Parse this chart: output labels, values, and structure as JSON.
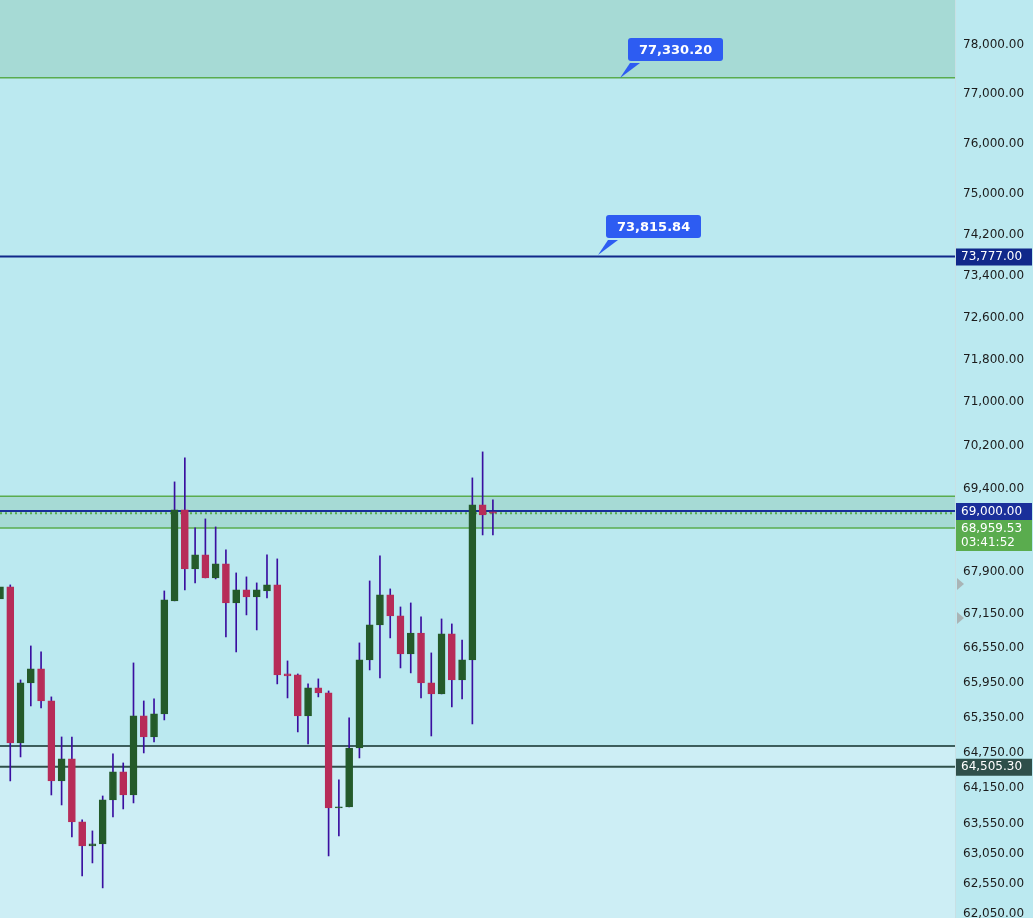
{
  "chart_data": {
    "type": "candlestick",
    "log": "y",
    "grid": false,
    "legend": false,
    "tick_labels": "y",
    "categories": [
      null,
      null,
      null,
      null,
      null,
      null,
      null,
      null,
      null,
      null,
      null,
      null,
      null,
      null,
      null,
      null,
      null,
      null,
      null,
      null,
      null,
      null,
      null,
      null,
      null,
      null,
      null,
      null,
      null,
      null,
      null,
      null,
      null,
      null,
      null,
      null,
      null,
      null,
      null,
      null,
      null,
      null,
      null,
      null,
      null,
      null,
      null,
      null,
      null,
      null,
      null,
      null,
      null,
      null,
      null,
      null,
      null,
      null,
      null,
      null,
      null,
      null,
      null,
      null,
      null,
      null,
      null,
      null,
      null,
      null,
      null,
      null,
      null,
      null,
      null,
      null,
      null,
      null,
      null,
      null,
      null,
      null,
      null,
      null,
      null,
      null,
      null,
      null,
      null,
      null,
      null,
      null,
      null,
      null
    ],
    "ohlc": [
      [
        67420,
        67633,
        67420,
        67633
      ],
      [
        67633,
        67669,
        64267,
        64912
      ],
      [
        64912,
        65998,
        64674,
        65946
      ],
      [
        65946,
        66591,
        65548,
        66189
      ],
      [
        66189,
        66486,
        65514,
        65634
      ],
      [
        65634,
        65704,
        64030,
        64267
      ],
      [
        64267,
        65015,
        63862,
        64640
      ],
      [
        64640,
        65015,
        63327,
        63578
      ],
      [
        63578,
        63611,
        62681,
        63177
      ],
      [
        63177,
        63427,
        62895,
        63210
      ],
      [
        63210,
        64013,
        62483,
        63946
      ],
      [
        63946,
        64725,
        63661,
        64419
      ],
      [
        64419,
        64572,
        63795,
        64030
      ],
      [
        64030,
        66294,
        63896,
        65376
      ],
      [
        65376,
        65634,
        64742,
        65015
      ],
      [
        65015,
        65669,
        64929,
        65410
      ],
      [
        65410,
        67562,
        65307,
        67402
      ],
      [
        67385,
        69529,
        67385,
        69018
      ],
      [
        69018,
        69970,
        67580,
        67955
      ],
      [
        67955,
        68692,
        67705,
        68205
      ],
      [
        68205,
        68855,
        67794,
        67794
      ],
      [
        67794,
        68710,
        67776,
        68044
      ],
      [
        68044,
        68295,
        66749,
        67349
      ],
      [
        67349,
        67883,
        66486,
        67580
      ],
      [
        67580,
        67812,
        67137,
        67456
      ],
      [
        67456,
        67705,
        66872,
        67580
      ],
      [
        67562,
        68205,
        67438,
        67669
      ],
      [
        67669,
        68134,
        65929,
        66085
      ],
      [
        66102,
        66329,
        65686,
        66068
      ],
      [
        66085,
        66102,
        65101,
        65376
      ],
      [
        65376,
        65929,
        64895,
        65859
      ],
      [
        65859,
        66016,
        65704,
        65773
      ],
      [
        65773,
        65807,
        63011,
        63812
      ],
      [
        63812,
        64284,
        63344,
        63829
      ],
      [
        63829,
        65341,
        63829,
        64827
      ],
      [
        64827,
        66644,
        64657,
        66346
      ],
      [
        66346,
        67740,
        66172,
        66961
      ],
      [
        66961,
        68187,
        66033,
        67491
      ],
      [
        67491,
        67598,
        66732,
        67119
      ],
      [
        67119,
        67278,
        66207,
        66451
      ],
      [
        66451,
        67349,
        66120,
        66819
      ],
      [
        66819,
        67102,
        65686,
        65946
      ],
      [
        65946,
        66469,
        65032,
        65755
      ],
      [
        65755,
        67066,
        65755,
        66802
      ],
      [
        66802,
        66978,
        65531,
        65998
      ],
      [
        65998,
        66696,
        65669,
        66346
      ],
      [
        66346,
        69602,
        65238,
        69109
      ],
      [
        69109,
        70080,
        68565,
        68927
      ],
      [
        68982,
        69200,
        68565,
        68959.53
      ],
      null,
      null,
      null,
      null,
      null,
      null,
      null,
      null,
      null,
      null,
      null,
      null,
      null,
      null,
      null,
      null,
      null,
      null,
      null,
      null,
      null,
      null,
      null,
      null,
      null,
      null,
      null,
      null,
      null,
      null,
      null,
      null,
      null,
      null,
      null,
      null,
      null,
      null,
      null,
      null,
      null,
      null,
      null,
      null,
      null
    ],
    "colors": [
      "#245a2a",
      "#b72c58",
      "#245a2a",
      "#245a2a",
      "#b72c58",
      "#b72c58",
      "#245a2a",
      "#b72c58",
      "#b72c58",
      "#245a2a",
      "#245a2a",
      "#245a2a",
      "#b72c58",
      "#245a2a",
      "#b72c58",
      "#245a2a",
      "#245a2a",
      "#245a2a",
      "#b72c58",
      "#245a2a",
      "#b72c58",
      "#245a2a",
      "#b72c58",
      "#245a2a",
      "#b72c58",
      "#245a2a",
      "#245a2a",
      "#b72c58",
      "#b72c58",
      "#b72c58",
      "#245a2a",
      "#b72c58",
      "#b72c58",
      "#245a2a",
      "#245a2a",
      "#245a2a",
      "#245a2a",
      "#245a2a",
      "#b72c58",
      "#b72c58",
      "#245a2a",
      "#b72c58",
      "#b72c58",
      "#245a2a",
      "#b72c58",
      "#245a2a",
      "#245a2a",
      "#b72c58",
      "#b72c58",
      null,
      null,
      null,
      null,
      null,
      null,
      null,
      null,
      null,
      null,
      null,
      null,
      null,
      null,
      null,
      null,
      null,
      null,
      null,
      null,
      null,
      null,
      null,
      null,
      null,
      null,
      null,
      null,
      null,
      null,
      null,
      null,
      null,
      null,
      null,
      null,
      null,
      null,
      null,
      null,
      null,
      null,
      null,
      null,
      null
    ],
    "ylim": [
      61990,
      78930
    ],
    "yticks": [
      {
        "value": 62050,
        "label": "62,050.00"
      },
      {
        "value": 62550,
        "label": "62,550.00"
      },
      {
        "value": 63050,
        "label": "63,050.00"
      },
      {
        "value": 63550,
        "label": "63,550.00"
      },
      {
        "value": 64150,
        "label": "64,150.00"
      },
      {
        "value": 64750,
        "label": "64,750.00"
      },
      {
        "value": 65350,
        "label": "65,350.00"
      },
      {
        "value": 65950,
        "label": "65,950.00"
      },
      {
        "value": 66550,
        "label": "66,550.00"
      },
      {
        "value": 67150,
        "label": "67,150.00"
      },
      {
        "value": 67900,
        "label": "67,900.00"
      },
      {
        "value": 69400,
        "label": "69,400.00"
      },
      {
        "value": 70200,
        "label": "70,200.00"
      },
      {
        "value": 71000,
        "label": "71,000.00"
      },
      {
        "value": 71800,
        "label": "71,800.00"
      },
      {
        "value": 72600,
        "label": "72,600.00"
      },
      {
        "value": 73400,
        "label": "73,400.00"
      },
      {
        "value": 74200,
        "label": "74,200.00"
      },
      {
        "value": 75000,
        "label": "75,000.00"
      },
      {
        "value": 76000,
        "label": "76,000.00"
      },
      {
        "value": 77000,
        "label": "77,000.00"
      },
      {
        "value": 78000,
        "label": "78,000.00"
      }
    ],
    "bands": [
      {
        "axis": "y",
        "from": 77330.2,
        "to": 78930,
        "color": "#a6dad5"
      },
      {
        "axis": "y",
        "from": 68692,
        "to": 69268,
        "color": "#a6dad5"
      },
      {
        "axis": "y",
        "from": 61990,
        "to": 64861,
        "color": "#cdeef5"
      }
    ],
    "ref_lines": [
      {
        "axis": "y",
        "value": 77330.2,
        "color": "#5aac4e"
      },
      {
        "axis": "y",
        "value": 73777,
        "label": "73,777.00",
        "color": "#10288a"
      },
      {
        "axis": "y",
        "value": 69268,
        "color": "#5aac4e"
      },
      {
        "axis": "y",
        "value": 68692,
        "color": "#5aac4e"
      },
      {
        "axis": "y",
        "value": 69000,
        "label": "69,000.00",
        "color": "#1a2f9a"
      },
      {
        "axis": "y",
        "value": 68959.53,
        "label": "68,959.53\n03:41:52",
        "color": "#5aac4e",
        "line_style": "dotted"
      },
      {
        "axis": "y",
        "value": 64861,
        "color": "#0f2e2a"
      },
      {
        "axis": "y",
        "value": 64505.3,
        "label": "64,505.30",
        "color": "#2f4f4a"
      }
    ],
    "annotations": [
      {
        "text": "77,330.20",
        "y": 77330.2
      },
      {
        "text": "73,815.84",
        "y": 73815.84
      }
    ]
  }
}
